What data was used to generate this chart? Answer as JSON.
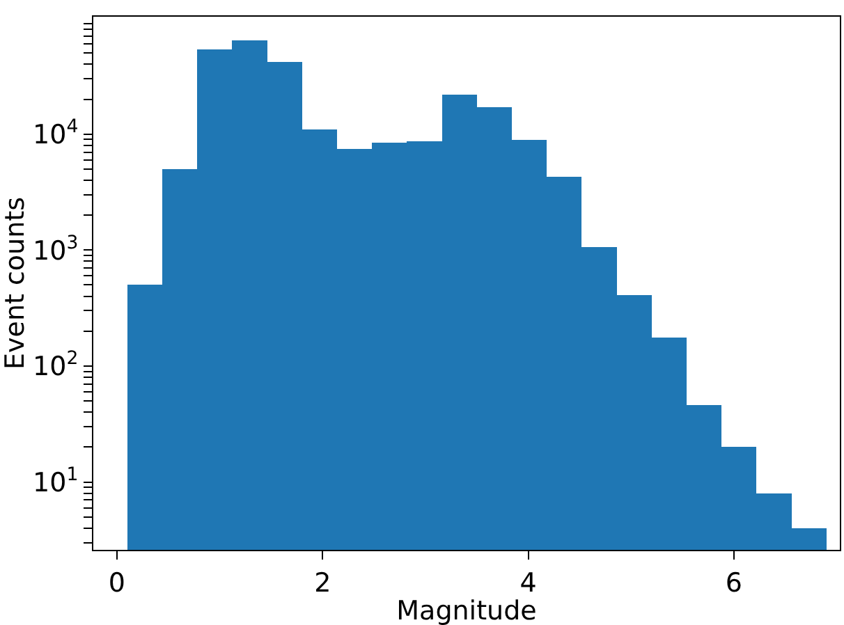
{
  "chart_data": {
    "type": "histogram",
    "xlabel": "Magnitude",
    "ylabel": "Event counts",
    "color": "#1f77b4",
    "log": "y",
    "grid": false,
    "bins": [
      0.1,
      0.44,
      0.78,
      1.12,
      1.46,
      1.8,
      2.14,
      2.48,
      2.82,
      3.16,
      3.5,
      3.84,
      4.18,
      4.52,
      4.86,
      5.2,
      5.54,
      5.88,
      6.22,
      6.56,
      6.9
    ],
    "values": [
      500,
      5000,
      54000,
      64000,
      42000,
      11000,
      7500,
      8400,
      8700,
      22000,
      17000,
      8900,
      4300,
      1060,
      410,
      175,
      46,
      20,
      8,
      4
    ],
    "xlim": [
      -0.23,
      7.03
    ],
    "xticks": [
      0,
      2,
      4,
      6
    ],
    "ylim": [
      2.6,
      103000
    ],
    "yticks": [
      {
        "value": 3,
        "label": null
      },
      {
        "value": 4,
        "label": null
      },
      {
        "value": 5,
        "label": null
      },
      {
        "value": 6,
        "label": null
      },
      {
        "value": 7,
        "label": null
      },
      {
        "value": 8,
        "label": null
      },
      {
        "value": 9,
        "label": null
      },
      {
        "value": 10,
        "label": "10$^{1}$"
      },
      {
        "value": 20,
        "label": null
      },
      {
        "value": 30,
        "label": null
      },
      {
        "value": 40,
        "label": null
      },
      {
        "value": 50,
        "label": null
      },
      {
        "value": 60,
        "label": null
      },
      {
        "value": 70,
        "label": null
      },
      {
        "value": 80,
        "label": null
      },
      {
        "value": 90,
        "label": null
      },
      {
        "value": 100,
        "label": "10$^{2}$"
      },
      {
        "value": 200,
        "label": null
      },
      {
        "value": 300,
        "label": null
      },
      {
        "value": 400,
        "label": null
      },
      {
        "value": 500,
        "label": null
      },
      {
        "value": 600,
        "label": null
      },
      {
        "value": 700,
        "label": null
      },
      {
        "value": 800,
        "label": null
      },
      {
        "value": 900,
        "label": null
      },
      {
        "value": 1000,
        "label": "10$^{3}$"
      },
      {
        "value": 2000,
        "label": null
      },
      {
        "value": 3000,
        "label": null
      },
      {
        "value": 4000,
        "label": null
      },
      {
        "value": 5000,
        "label": null
      },
      {
        "value": 6000,
        "label": null
      },
      {
        "value": 7000,
        "label": null
      },
      {
        "value": 8000,
        "label": null
      },
      {
        "value": 9000,
        "label": null
      },
      {
        "value": 10000,
        "label": "10$^{4}$"
      },
      {
        "value": 20000,
        "label": null
      },
      {
        "value": 30000,
        "label": null
      },
      {
        "value": 40000,
        "label": null
      },
      {
        "value": 50000,
        "label": null
      },
      {
        "value": 60000,
        "label": null
      },
      {
        "value": 70000,
        "label": null
      },
      {
        "value": 80000,
        "label": null
      },
      {
        "value": 90000,
        "label": null
      }
    ]
  }
}
